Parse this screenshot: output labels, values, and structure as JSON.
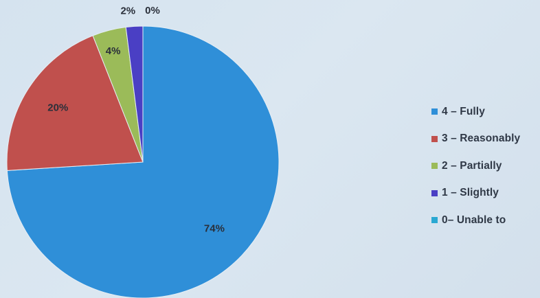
{
  "chart_data": {
    "type": "pie",
    "title": "",
    "categories": [
      "4 – Fully",
      "3 – Reasonably",
      "2 – Partially",
      "1 – Slightly",
      "0– Unable to"
    ],
    "values": [
      74,
      20,
      4,
      2,
      0
    ],
    "value_labels": [
      "74%",
      "20%",
      "4%",
      "2%",
      "0%"
    ],
    "colors": [
      "#2f8fd8",
      "#c0504d",
      "#9bbb59",
      "#4a3fc4",
      "#2aa8d2"
    ],
    "start_angle_deg": 0,
    "direction": "clockwise",
    "legend": {
      "position": "right",
      "entries": [
        "4 – Fully",
        "3 – Reasonably",
        "2 – Partially",
        "1 – Slightly",
        "0– Unable to"
      ]
    },
    "grid": false
  }
}
